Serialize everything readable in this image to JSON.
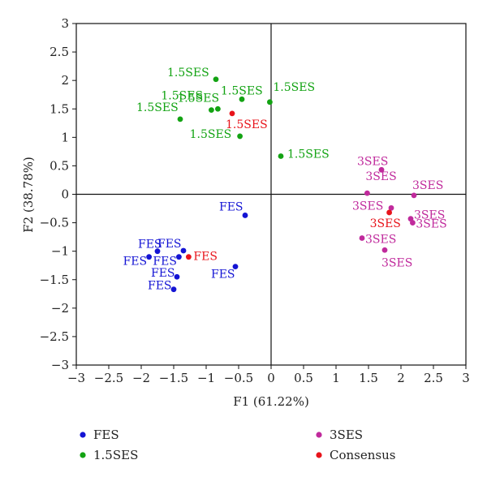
{
  "chart_data": {
    "type": "scatter",
    "xlabel": "F1 (61.22%)",
    "ylabel": "F2 (38.78%)",
    "xlim": [
      -3,
      3
    ],
    "ylim": [
      -3,
      3
    ],
    "xticks": [
      "−3",
      "−2.5",
      "−2",
      "−1.5",
      "−1",
      "−0.5",
      "0",
      "0.5",
      "1",
      "1.5",
      "2",
      "2.5",
      "3"
    ],
    "yticks": [
      "3",
      "2.5",
      "2",
      "1.5",
      "1",
      "0.5",
      "0",
      "−0.5",
      "−1",
      "−1.5",
      "−2",
      "−2.5",
      "−3"
    ],
    "legend_position": "bottom",
    "series": [
      {
        "name": "FES",
        "color": "#1414d4",
        "points": [
          {
            "x": -0.4,
            "y": -0.37,
            "label": "FES"
          },
          {
            "x": -1.75,
            "y": -1.0,
            "label": "FES"
          },
          {
            "x": -1.35,
            "y": -0.99,
            "label": "FES"
          },
          {
            "x": -1.88,
            "y": -1.1,
            "label": "FES"
          },
          {
            "x": -1.42,
            "y": -1.1,
            "label": "FES"
          },
          {
            "x": -0.55,
            "y": -1.27,
            "label": "FES"
          },
          {
            "x": -1.45,
            "y": -1.45,
            "label": "FES"
          },
          {
            "x": -1.5,
            "y": -1.67,
            "label": "FES"
          }
        ]
      },
      {
        "name": "1.5SES",
        "color": "#13a313",
        "points": [
          {
            "x": -0.85,
            "y": 2.02,
            "label": "1.5SES"
          },
          {
            "x": -0.45,
            "y": 1.67,
            "label": "1.5SES"
          },
          {
            "x": -0.02,
            "y": 1.62,
            "label": "1.5SES"
          },
          {
            "x": -0.92,
            "y": 1.48,
            "label": "1.5SES"
          },
          {
            "x": -0.82,
            "y": 1.5,
            "label": "1.5SES"
          },
          {
            "x": -1.4,
            "y": 1.32,
            "label": "1.5SES"
          },
          {
            "x": -0.48,
            "y": 1.02,
            "label": "1.5SES"
          },
          {
            "x": 0.15,
            "y": 0.67,
            "label": "1.5SES"
          }
        ]
      },
      {
        "name": "3SES",
        "color": "#c02a9c",
        "points": [
          {
            "x": 1.7,
            "y": 0.43,
            "label": "3SES"
          },
          {
            "x": 1.48,
            "y": 0.02,
            "label": "3SES"
          },
          {
            "x": 2.2,
            "y": -0.02,
            "label": "3SES"
          },
          {
            "x": 1.85,
            "y": -0.24,
            "label": "3SES"
          },
          {
            "x": 2.15,
            "y": -0.43,
            "label": "3SES"
          },
          {
            "x": 2.18,
            "y": -0.5,
            "label": "3SES"
          },
          {
            "x": 1.4,
            "y": -0.77,
            "label": "3SES"
          },
          {
            "x": 1.75,
            "y": -0.98,
            "label": "3SES"
          }
        ]
      },
      {
        "name": "Consensus",
        "color": "#e8141b",
        "points": [
          {
            "x": -0.6,
            "y": 1.42,
            "label": "1.5SES"
          },
          {
            "x": -1.27,
            "y": -1.1,
            "label": "FES"
          },
          {
            "x": 1.82,
            "y": -0.32,
            "label": "3SES"
          }
        ]
      }
    ]
  }
}
